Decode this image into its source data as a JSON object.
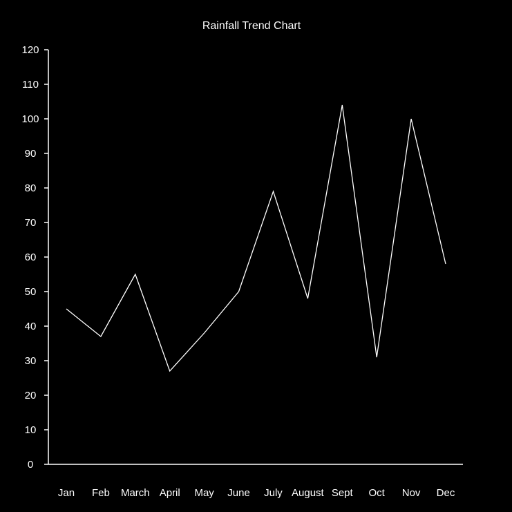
{
  "chart_data": {
    "type": "line",
    "title": "Rainfall Trend Chart",
    "xlabel": "",
    "ylabel": "",
    "categories": [
      "Jan",
      "Feb",
      "March",
      "April",
      "May",
      "June",
      "July",
      "August",
      "Sept",
      "Oct",
      "Nov",
      "Dec"
    ],
    "series": [
      {
        "values": [
          45,
          37,
          55,
          27,
          38,
          50,
          79,
          48,
          104,
          31,
          100,
          58
        ]
      }
    ],
    "ylim": [
      0,
      120
    ],
    "yticks": [
      0,
      10,
      20,
      30,
      40,
      50,
      60,
      70,
      80,
      90,
      100,
      110,
      120
    ],
    "grid": false,
    "legend": "none",
    "colors": {
      "background": "#000000",
      "line": "#ffffff",
      "axis": "#ffffff",
      "text": "#ffffff"
    }
  }
}
